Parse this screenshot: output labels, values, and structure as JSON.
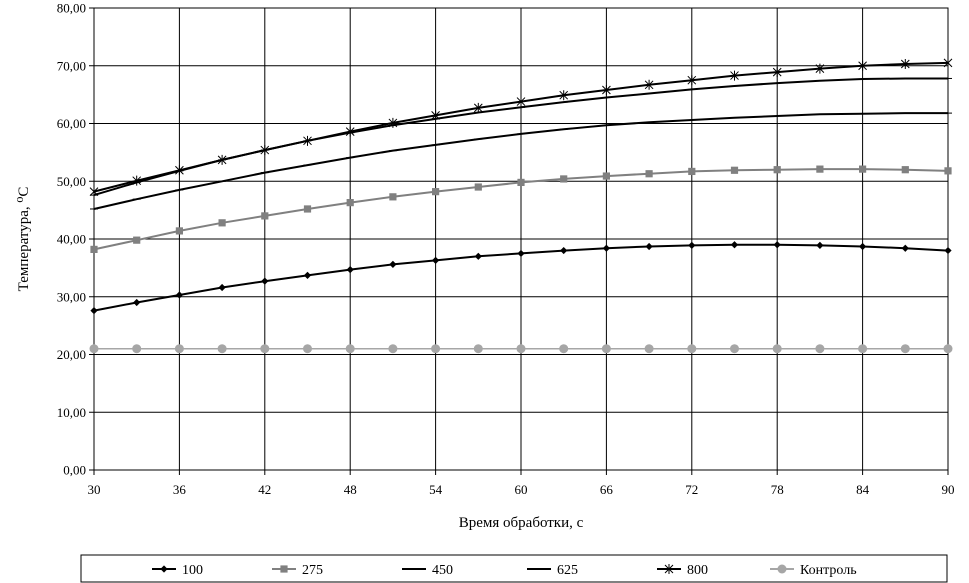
{
  "chart_data": {
    "type": "line",
    "title": "",
    "xlabel": "Время обработки, с",
    "ylabel": "Температура, ⁰С",
    "xlim": [
      30,
      90
    ],
    "ylim": [
      0,
      80
    ],
    "x_ticks": [
      30,
      36,
      42,
      48,
      54,
      60,
      66,
      72,
      78,
      84,
      90
    ],
    "y_ticks": [
      0,
      10,
      20,
      30,
      40,
      50,
      60,
      70,
      80
    ],
    "y_tick_labels": [
      "0,00",
      "10,00",
      "20,00",
      "30,00",
      "40,00",
      "50,00",
      "60,00",
      "70,00",
      "80,00"
    ],
    "grid": true,
    "legend_position": "bottom",
    "x": [
      30,
      33,
      36,
      39,
      42,
      45,
      48,
      51,
      54,
      57,
      60,
      63,
      66,
      69,
      72,
      75,
      78,
      81,
      84,
      87,
      90
    ],
    "series": [
      {
        "name": "100",
        "marker": "diamond",
        "color": "#000000",
        "values": [
          27.6,
          29.0,
          30.3,
          31.6,
          32.7,
          33.7,
          34.7,
          35.6,
          36.3,
          37.0,
          37.5,
          38.0,
          38.4,
          38.7,
          38.9,
          39.0,
          39.0,
          38.9,
          38.7,
          38.4,
          38.0
        ]
      },
      {
        "name": "275",
        "marker": "square",
        "color": "#808080",
        "values": [
          38.2,
          39.8,
          41.4,
          42.8,
          44.0,
          45.2,
          46.3,
          47.3,
          48.2,
          49.0,
          49.8,
          50.4,
          50.9,
          51.3,
          51.7,
          51.9,
          52.0,
          52.1,
          52.1,
          52.0,
          51.8
        ]
      },
      {
        "name": "450",
        "marker": "dash",
        "color": "#000000",
        "values": [
          45.2,
          46.9,
          48.5,
          50.0,
          51.5,
          52.8,
          54.1,
          55.3,
          56.3,
          57.3,
          58.2,
          59.0,
          59.7,
          60.2,
          60.6,
          61.0,
          61.3,
          61.6,
          61.7,
          61.8,
          61.8
        ]
      },
      {
        "name": "625",
        "marker": "dash",
        "color": "#000000",
        "values": [
          47.6,
          49.8,
          51.8,
          53.7,
          55.4,
          57.0,
          58.4,
          59.7,
          60.8,
          61.9,
          62.8,
          63.7,
          64.5,
          65.2,
          65.9,
          66.5,
          67.0,
          67.4,
          67.7,
          67.8,
          67.8
        ]
      },
      {
        "name": "800",
        "marker": "star",
        "color": "#000000",
        "values": [
          48.2,
          50.1,
          51.9,
          53.7,
          55.4,
          57.0,
          58.6,
          60.1,
          61.4,
          62.7,
          63.8,
          64.9,
          65.8,
          66.7,
          67.5,
          68.3,
          68.9,
          69.5,
          70.0,
          70.3,
          70.5
        ]
      },
      {
        "name": "Контроль",
        "marker": "circle",
        "color": "#a6a6a6",
        "values": [
          21.0,
          21.0,
          21.0,
          21.0,
          21.0,
          21.0,
          21.0,
          21.0,
          21.0,
          21.0,
          21.0,
          21.0,
          21.0,
          21.0,
          21.0,
          21.0,
          21.0,
          21.0,
          21.0,
          21.0,
          21.0
        ]
      }
    ]
  }
}
